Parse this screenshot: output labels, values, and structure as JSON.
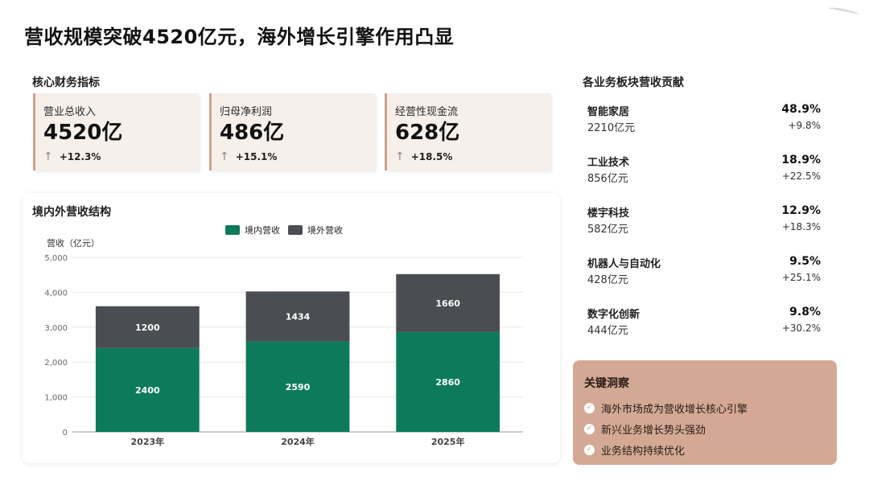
{
  "title": "营收规模突破4520亿元，海外增长引擎作用凸显",
  "core_metrics": {
    "label": "核心财务指标",
    "items": [
      {
        "label": "营业总收入",
        "value": "4520亿",
        "change": "+12.3%",
        "change_icon": "up-arrow-icon"
      },
      {
        "label": "归母净利润",
        "value": "486亿",
        "change": "+15.1%",
        "change_icon": "up-arrow-icon"
      },
      {
        "label": "经营性现金流",
        "value": "628亿",
        "change": "+18.5%",
        "change_icon": "up-arrow-icon"
      }
    ]
  },
  "segments": {
    "label": "各业务板块营收贡献",
    "items": [
      {
        "name": "智能家居",
        "revenue": "2210亿元",
        "share": "48.9%",
        "growth": "+9.8%"
      },
      {
        "name": "工业技术",
        "revenue": "856亿元",
        "share": "18.9%",
        "growth": "+22.5%"
      },
      {
        "name": "楼宇科技",
        "revenue": "582亿元",
        "share": "12.9%",
        "growth": "+18.3%"
      },
      {
        "name": "机器人与自动化",
        "revenue": "428亿元",
        "share": "9.5%",
        "growth": "+25.1%"
      },
      {
        "name": "数字化创新",
        "revenue": "444亿元",
        "share": "9.8%",
        "growth": "+30.2%"
      }
    ]
  },
  "insights": {
    "title": "关键洞察",
    "items": [
      "海外市场成为营收增长核心引擎",
      "新兴业务增长势头强劲",
      "业务结构持续优化"
    ]
  },
  "colors": {
    "domestic": "#0d7a5c",
    "overseas": "#4a4d52",
    "accent": "#d3a995"
  },
  "chart_data": {
    "type": "bar",
    "stacked": true,
    "title": "境内外营收结构",
    "ylabel": "营收（亿元）",
    "categories": [
      "2023年",
      "2024年",
      "2025年"
    ],
    "series": [
      {
        "name": "境内营收",
        "values": [
          2400,
          2590,
          2860
        ]
      },
      {
        "name": "境外营收",
        "values": [
          1200,
          1434,
          1660
        ]
      }
    ],
    "ylim": [
      0,
      5000
    ],
    "yticks": [
      "0",
      "1,000",
      "2,000",
      "3,000",
      "4,000",
      "5,000"
    ],
    "grid": true,
    "legend": "top-center"
  }
}
